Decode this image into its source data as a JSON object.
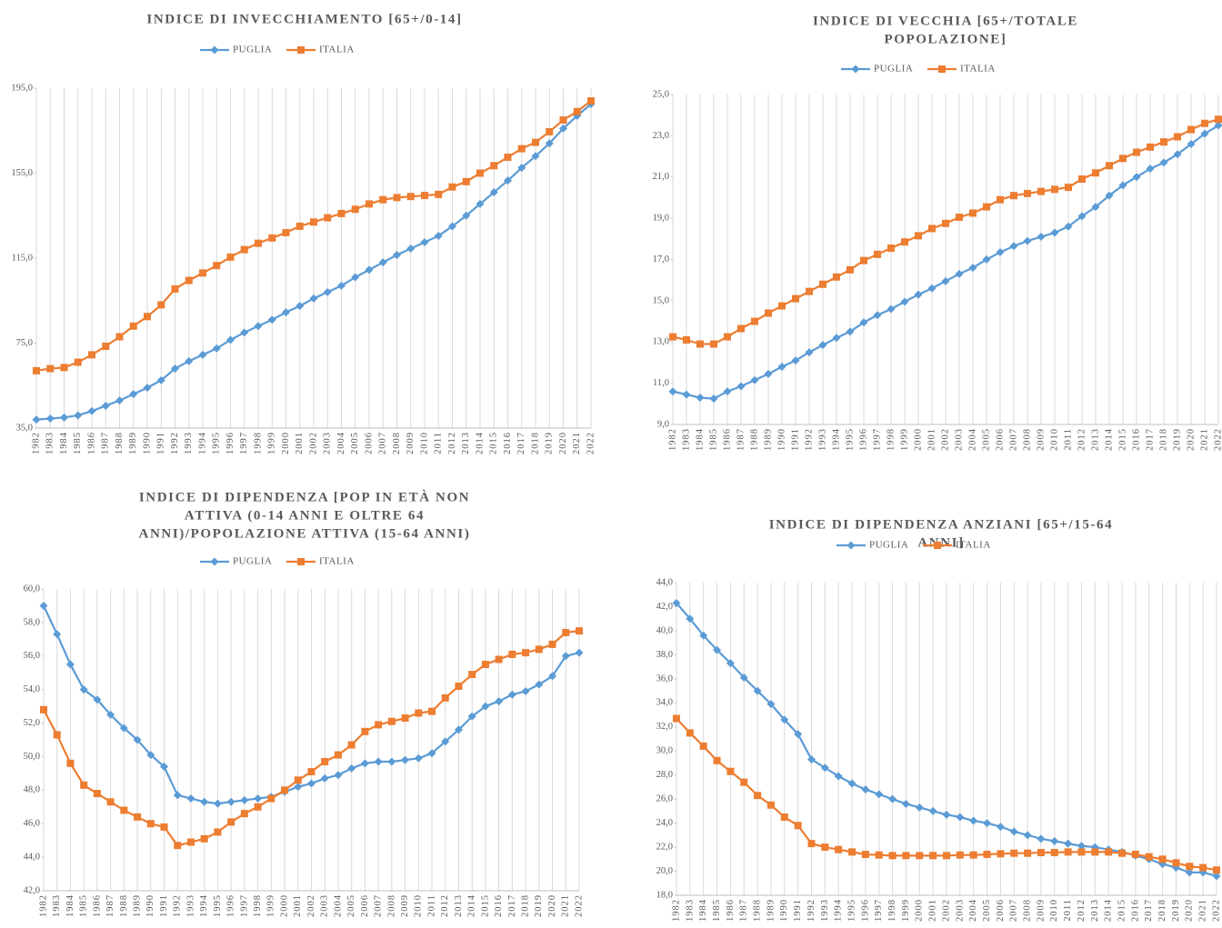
{
  "chart_data": [
    {
      "type": "line",
      "title": [
        "INDICE DI INVECCHIAMENTO [65+/0-14]"
      ],
      "categories": [
        "1982",
        "1983",
        "1984",
        "1985",
        "1986",
        "1987",
        "1988",
        "1989",
        "1990",
        "1991",
        "1992",
        "1993",
        "1994",
        "1995",
        "1996",
        "1997",
        "1998",
        "1999",
        "2000",
        "2001",
        "2002",
        "2003",
        "2004",
        "2005",
        "2006",
        "2007",
        "2008",
        "2009",
        "2010",
        "2011",
        "2012",
        "2013",
        "2014",
        "2015",
        "2016",
        "2017",
        "2018",
        "2019",
        "2020",
        "2021",
        "2022"
      ],
      "series": [
        {
          "name": "PUGLIA",
          "color": "#5b9bd5",
          "marker": "diamond",
          "values": [
            39,
            39.5,
            40,
            41,
            43,
            45.5,
            48,
            51,
            54,
            57.5,
            63,
            66.5,
            69.5,
            72.5,
            76.5,
            80,
            83,
            86,
            89.5,
            92.5,
            96,
            99,
            102,
            106,
            109.5,
            113,
            116.5,
            119.5,
            122.5,
            125.5,
            130,
            135,
            140.5,
            146,
            151.5,
            157.5,
            163,
            169,
            176,
            182,
            187.5
          ]
        },
        {
          "name": "ITALIA",
          "color": "#ed7d31",
          "marker": "square",
          "values": [
            62,
            63,
            63.5,
            66,
            69.5,
            73.5,
            78,
            83,
            87.5,
            93,
            100.5,
            104.5,
            108,
            111.5,
            115.5,
            119,
            122,
            124.5,
            127,
            130,
            132,
            134,
            136,
            138,
            140.5,
            142.5,
            143.5,
            144,
            144.5,
            145,
            148.5,
            151,
            155,
            158.5,
            162.5,
            166.5,
            169.5,
            174.5,
            180,
            184,
            189
          ]
        }
      ],
      "ylim": [
        35,
        195
      ],
      "yticks": [
        {
          "value": 35,
          "label": "35,0"
        },
        {
          "value": 75,
          "label": "75,0"
        },
        {
          "value": 115,
          "label": "115,0"
        },
        {
          "value": 155,
          "label": "155,0"
        },
        {
          "value": 195,
          "label": "195,0"
        }
      ],
      "grid": "x",
      "legend": "top"
    },
    {
      "type": "line",
      "title": [
        "INDICE DI VECCHIA [65+/TOTALE",
        "POPOLAZIONE]"
      ],
      "categories": [
        "1982",
        "1983",
        "1984",
        "1985",
        "1986",
        "1987",
        "1988",
        "1989",
        "1990",
        "1991",
        "1992",
        "1993",
        "1994",
        "1995",
        "1996",
        "1997",
        "1998",
        "1999",
        "2000",
        "2001",
        "2002",
        "2003",
        "2004",
        "2005",
        "2006",
        "2007",
        "2008",
        "2009",
        "2010",
        "2011",
        "2012",
        "2013",
        "2014",
        "2015",
        "2016",
        "2017",
        "2018",
        "2019",
        "2020",
        "2021",
        "2022"
      ],
      "series": [
        {
          "name": "PUGLIA",
          "color": "#5b9bd5",
          "marker": "diamond",
          "values": [
            10.6,
            10.45,
            10.3,
            10.25,
            10.6,
            10.85,
            11.15,
            11.45,
            11.8,
            12.1,
            12.5,
            12.85,
            13.2,
            13.5,
            13.95,
            14.3,
            14.6,
            14.95,
            15.3,
            15.6,
            15.95,
            16.3,
            16.6,
            17,
            17.35,
            17.65,
            17.9,
            18.1,
            18.3,
            18.6,
            19.1,
            19.55,
            20.1,
            20.6,
            21,
            21.4,
            21.7,
            22.1,
            22.6,
            23.1,
            23.5
          ]
        },
        {
          "name": "ITALIA",
          "color": "#ed7d31",
          "marker": "square",
          "values": [
            13.25,
            13.1,
            12.9,
            12.9,
            13.25,
            13.65,
            14,
            14.4,
            14.75,
            15.1,
            15.45,
            15.8,
            16.15,
            16.5,
            16.95,
            17.25,
            17.55,
            17.85,
            18.15,
            18.5,
            18.75,
            19.05,
            19.25,
            19.55,
            19.9,
            20.1,
            20.2,
            20.3,
            20.4,
            20.5,
            20.9,
            21.2,
            21.55,
            21.9,
            22.2,
            22.45,
            22.7,
            22.95,
            23.3,
            23.6,
            23.8
          ]
        }
      ],
      "ylim": [
        9,
        25
      ],
      "yticks": [
        {
          "value": 9,
          "label": "9,0"
        },
        {
          "value": 11,
          "label": "11,0"
        },
        {
          "value": 13,
          "label": "13,0"
        },
        {
          "value": 15,
          "label": "15,0"
        },
        {
          "value": 17,
          "label": "17,0"
        },
        {
          "value": 19,
          "label": "19,0"
        },
        {
          "value": 21,
          "label": "21,0"
        },
        {
          "value": 23,
          "label": "23,0"
        },
        {
          "value": 25,
          "label": "25,0"
        }
      ],
      "grid": "x",
      "legend": "top"
    },
    {
      "type": "line",
      "title": [
        "INDICE DI DIPENDENZA [POP IN ETÀ NON",
        "ATTIVA (0-14 ANNI E OLTRE 64",
        "ANNI)/POPOLAZIONE ATTIVA (15-64 ANNI)"
      ],
      "categories": [
        "1982",
        "1983",
        "1984",
        "1985",
        "1986",
        "1987",
        "1988",
        "1989",
        "1990",
        "1991",
        "1992",
        "1993",
        "1994",
        "1995",
        "1996",
        "1997",
        "1998",
        "1999",
        "2000",
        "2001",
        "2002",
        "2003",
        "2004",
        "2005",
        "2006",
        "2007",
        "2008",
        "2009",
        "2010",
        "2011",
        "2012",
        "2013",
        "2014",
        "2015",
        "2016",
        "2017",
        "2018",
        "2019",
        "2020",
        "2021",
        "2022"
      ],
      "series": [
        {
          "name": "PUGLIA",
          "color": "#5b9bd5",
          "marker": "diamond",
          "values": [
            59,
            57.3,
            55.5,
            54,
            53.4,
            52.5,
            51.7,
            51,
            50.1,
            49.4,
            47.7,
            47.5,
            47.3,
            47.2,
            47.3,
            47.4,
            47.5,
            47.6,
            47.9,
            48.2,
            48.4,
            48.7,
            48.9,
            49.3,
            49.6,
            49.7,
            49.7,
            49.8,
            49.9,
            50.2,
            50.9,
            51.6,
            52.4,
            53,
            53.3,
            53.7,
            53.9,
            54.3,
            54.8,
            56,
            56.2
          ]
        },
        {
          "name": "ITALIA",
          "color": "#ed7d31",
          "marker": "square",
          "values": [
            52.8,
            51.3,
            49.6,
            48.3,
            47.8,
            47.3,
            46.8,
            46.4,
            46,
            45.8,
            44.7,
            44.9,
            45.1,
            45.5,
            46.1,
            46.6,
            47,
            47.5,
            48,
            48.6,
            49.1,
            49.7,
            50.1,
            50.7,
            51.5,
            51.9,
            52.1,
            52.3,
            52.6,
            52.7,
            53.5,
            54.2,
            54.9,
            55.5,
            55.8,
            56.1,
            56.2,
            56.4,
            56.7,
            57.4,
            57.5
          ]
        }
      ],
      "ylim": [
        42,
        60
      ],
      "yticks": [
        {
          "value": 42,
          "label": "42,0"
        },
        {
          "value": 44,
          "label": "44,0"
        },
        {
          "value": 46,
          "label": "46,0"
        },
        {
          "value": 48,
          "label": "48,0"
        },
        {
          "value": 50,
          "label": "50,0"
        },
        {
          "value": 52,
          "label": "52,0"
        },
        {
          "value": 54,
          "label": "54,0"
        },
        {
          "value": 56,
          "label": "56,0"
        },
        {
          "value": 58,
          "label": "58,0"
        },
        {
          "value": 60,
          "label": "60,0"
        }
      ],
      "grid": "x",
      "legend": "top"
    },
    {
      "type": "line",
      "title": [
        "INDICE DI DIPENDENZA ANZIANI [65+/15-64",
        "ANNI]"
      ],
      "categories": [
        "1982",
        "1983",
        "1984",
        "1985",
        "1986",
        "1987",
        "1988",
        "1989",
        "1990",
        "1991",
        "1992",
        "1993",
        "1994",
        "1995",
        "1996",
        "1997",
        "1998",
        "1999",
        "2000",
        "2001",
        "2002",
        "2003",
        "2004",
        "2005",
        "2006",
        "2007",
        "2008",
        "2009",
        "2010",
        "2011",
        "2012",
        "2013",
        "2014",
        "2015",
        "2016",
        "2017",
        "2018",
        "2019",
        "2020",
        "2021",
        "2022"
      ],
      "series": [
        {
          "name": "PUGLIA",
          "color": "#5b9bd5",
          "marker": "diamond",
          "values": [
            42.3,
            41,
            39.6,
            38.4,
            37.3,
            36.1,
            35,
            33.9,
            32.6,
            31.4,
            29.3,
            28.6,
            27.9,
            27.3,
            26.8,
            26.4,
            26,
            25.6,
            25.3,
            25,
            24.7,
            24.5,
            24.2,
            24,
            23.7,
            23.3,
            23,
            22.7,
            22.5,
            22.3,
            22.1,
            22,
            21.8,
            21.6,
            21.3,
            21,
            20.6,
            20.3,
            19.9,
            19.9,
            19.6
          ]
        },
        {
          "name": "ITALIA",
          "color": "#ed7d31",
          "marker": "square",
          "values": [
            32.7,
            31.5,
            30.4,
            29.2,
            28.3,
            27.4,
            26.3,
            25.5,
            24.5,
            23.8,
            22.3,
            22,
            21.8,
            21.6,
            21.4,
            21.35,
            21.3,
            21.3,
            21.3,
            21.3,
            21.3,
            21.35,
            21.35,
            21.4,
            21.45,
            21.5,
            21.5,
            21.55,
            21.55,
            21.6,
            21.6,
            21.6,
            21.6,
            21.5,
            21.4,
            21.2,
            21,
            20.7,
            20.4,
            20.3,
            20.1
          ]
        }
      ],
      "ylim": [
        18,
        44
      ],
      "yticks": [
        {
          "value": 18,
          "label": "18,0"
        },
        {
          "value": 20,
          "label": "20,0"
        },
        {
          "value": 22,
          "label": "22,0"
        },
        {
          "value": 24,
          "label": "24,0"
        },
        {
          "value": 26,
          "label": "26,0"
        },
        {
          "value": 28,
          "label": "28,0"
        },
        {
          "value": 30,
          "label": "30,0"
        },
        {
          "value": 32,
          "label": "32,0"
        },
        {
          "value": 34,
          "label": "34,0"
        },
        {
          "value": 36,
          "label": "36,0"
        },
        {
          "value": 38,
          "label": "38,0"
        },
        {
          "value": 40,
          "label": "40,0"
        },
        {
          "value": 42,
          "label": "42,0"
        },
        {
          "value": 44,
          "label": "44,0"
        }
      ],
      "grid": "x",
      "legend": "top"
    }
  ]
}
